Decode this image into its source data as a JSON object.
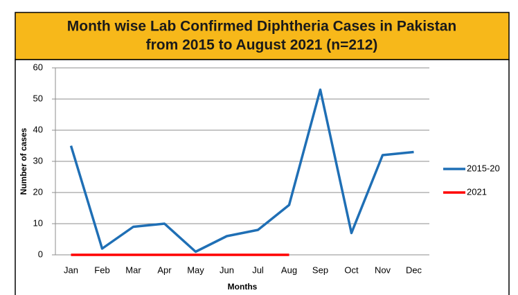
{
  "chart_data": {
    "type": "line",
    "title": [
      "Month wise Lab Confirmed Diphtheria Cases in Pakistan",
      "from 2015 to August 2021 (n=212)"
    ],
    "x_label": "Months",
    "y_label": "Number of cases",
    "categories": [
      "Jan",
      "Feb",
      "Mar",
      "Apr",
      "May",
      "Jun",
      "Jul",
      "Aug",
      "Sep",
      "Oct",
      "Nov",
      "Dec"
    ],
    "series": [
      {
        "name": "2015-20",
        "color": "#1f6fb5",
        "values": [
          35,
          2,
          9,
          10,
          1,
          6,
          8,
          16,
          53,
          7,
          32,
          33
        ]
      },
      {
        "name": "2021",
        "color": "#ff0000",
        "values": [
          0,
          0,
          0,
          0,
          0,
          0,
          0,
          0,
          null,
          null,
          null,
          null
        ]
      }
    ],
    "ylim": [
      0,
      60
    ],
    "yticks": [
      0,
      10,
      20,
      30,
      40,
      50,
      60
    ],
    "grid": true,
    "legend": "right"
  }
}
